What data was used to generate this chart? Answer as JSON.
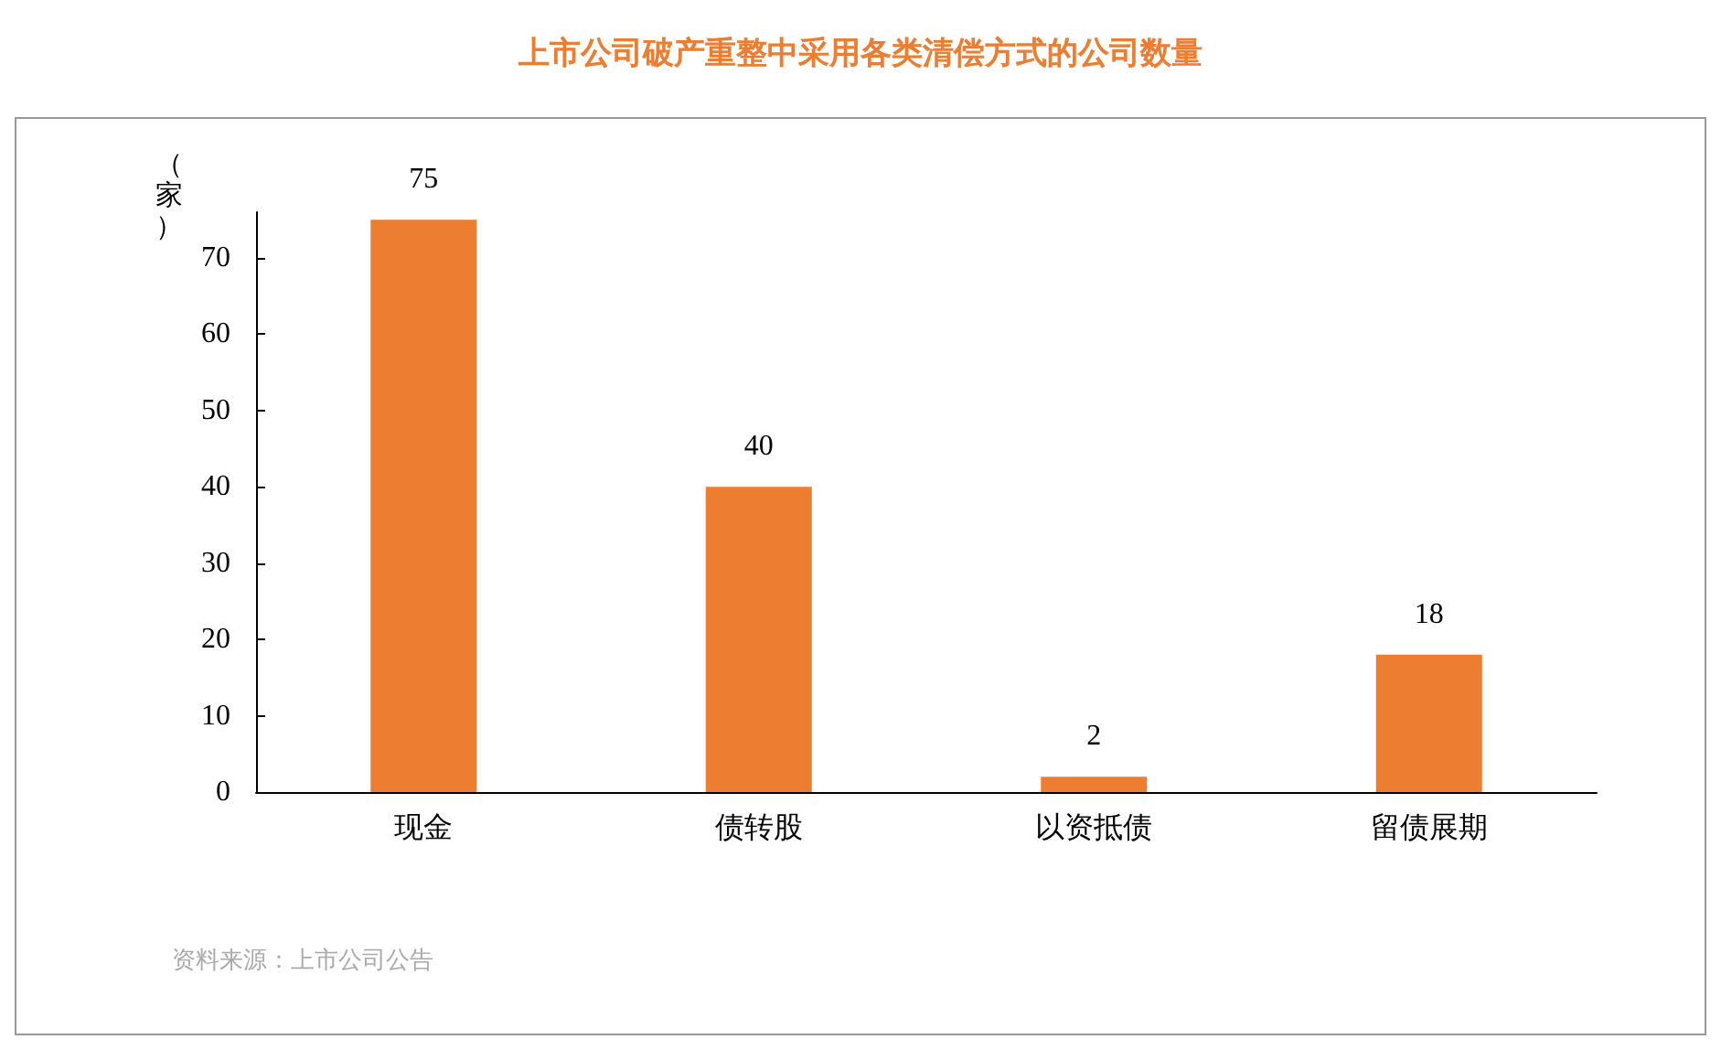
{
  "chart_data": {
    "type": "bar",
    "title": "上市公司破产重整中采用各类清偿方式的公司数量",
    "ylabel": "（家）",
    "categories": [
      "现金",
      "债转股",
      "以资抵债",
      "留债展期"
    ],
    "values": [
      75,
      40,
      2,
      18
    ],
    "color": "#ed7d31",
    "ylim": [
      0,
      76
    ],
    "yticks": [
      0,
      10,
      20,
      30,
      40,
      50,
      60,
      70
    ],
    "data_labels": true,
    "grid": false,
    "annotations": [
      "资料来源：上市公司公告"
    ]
  }
}
